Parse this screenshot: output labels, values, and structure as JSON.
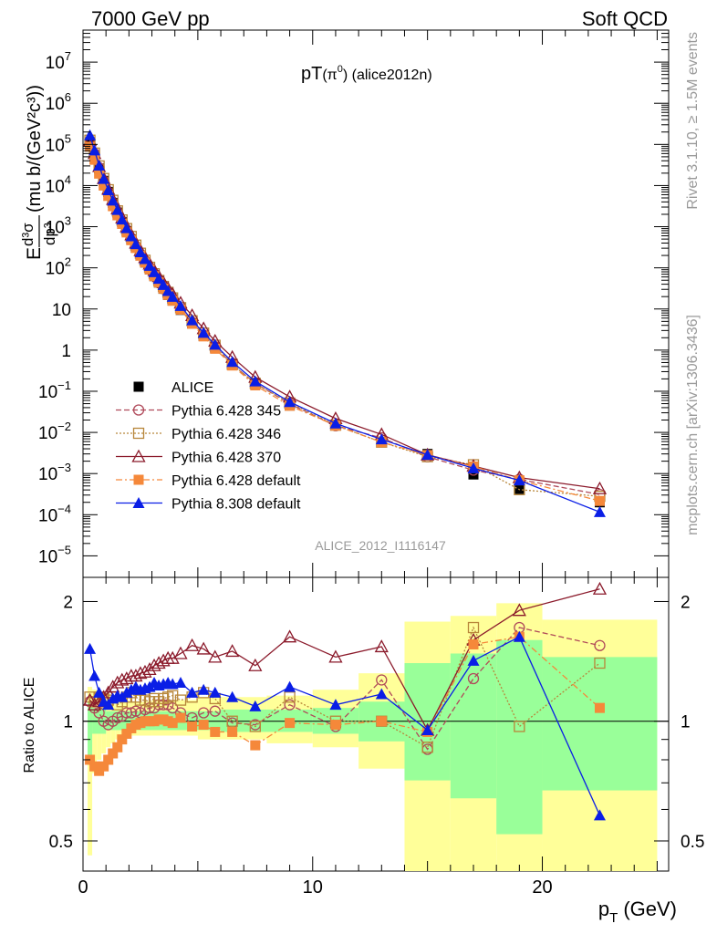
{
  "header": {
    "left": "7000 GeV pp",
    "right": "Soft QCD"
  },
  "plot_title": {
    "main": "pT",
    "paren": "(π",
    "sup": "0",
    "close": ")",
    "tag": " (alice2012n)"
  },
  "side_labels": {
    "rivet": "Rivet 3.1.10, ≥ 1.5M events",
    "mcplots": "mcplots.cern.ch [arXiv:1306.3436]"
  },
  "analysis_id": "ALICE_2012_I1116147",
  "axes": {
    "ylabel_top": {
      "prefix": "E",
      "frac_num": "d³σ",
      "frac_den": "dp³",
      "unit": "(mu b/(GeV²c³))"
    },
    "ylabel_bottom": "Ratio to ALICE",
    "xlabel": {
      "main": "p",
      "sub": "T",
      "unit": "(GeV)"
    }
  },
  "chart_data": [
    {
      "type": "scatter",
      "xlim": [
        0,
        25.5
      ],
      "ylim": [
        3e-06,
        60000000.0
      ],
      "yscale": "log",
      "xticks": [
        0,
        10,
        20
      ],
      "yticks": [
        {
          "v": 10000000.0,
          "base": "10",
          "exp": "7"
        },
        {
          "v": 1000000.0,
          "base": "10",
          "exp": "6"
        },
        {
          "v": 100000.0,
          "base": "10",
          "exp": "5"
        },
        {
          "v": 10000.0,
          "base": "10",
          "exp": "4"
        },
        {
          "v": 1000.0,
          "base": "10",
          "exp": "3"
        },
        {
          "v": 100.0,
          "base": "10",
          "exp": "2"
        },
        {
          "v": 10,
          "base": "10",
          "exp": ""
        },
        {
          "v": 1,
          "base": "1",
          "exp": ""
        },
        {
          "v": 0.1,
          "base": "10",
          "exp": "−1"
        },
        {
          "v": 0.01,
          "base": "10",
          "exp": "−2"
        },
        {
          "v": 0.001,
          "base": "10",
          "exp": "−3"
        },
        {
          "v": 0.0001,
          "base": "10",
          "exp": "−4"
        },
        {
          "v": 1e-05,
          "base": "10",
          "exp": "−5"
        }
      ],
      "legend_position": "bottom-left",
      "x": [
        0.3,
        0.5,
        0.7,
        0.9,
        1.1,
        1.3,
        1.5,
        1.7,
        1.9,
        2.1,
        2.3,
        2.5,
        2.7,
        2.9,
        3.1,
        3.3,
        3.5,
        3.7,
        3.9,
        4.25,
        4.75,
        5.25,
        5.75,
        6.5,
        7.5,
        9,
        11,
        13,
        15,
        17,
        19,
        22.5
      ],
      "data_values": [
        110000,
        55000,
        26000,
        13000,
        7000,
        3800,
        2200,
        1300,
        780,
        490,
        310,
        200,
        135,
        92,
        63,
        44,
        31,
        22,
        16,
        9.5,
        4.5,
        2.2,
        1.15,
        0.45,
        0.16,
        0.045,
        0.015,
        0.0058,
        0.003,
        0.00095,
        0.00042,
        0.0002
      ],
      "series": [
        {
          "name": "ALICE",
          "color": "#000000",
          "marker": "filled-square",
          "line": "none"
        },
        {
          "name": "Pythia 6.428 345",
          "color": "#b04a5a",
          "marker": "open-circle",
          "line": "dashed"
        },
        {
          "name": "Pythia 6.428 346",
          "color": "#b8863a",
          "marker": "open-square",
          "line": "dotted"
        },
        {
          "name": "Pythia 6.428 370",
          "color": "#8b1a2b",
          "marker": "open-triangle",
          "line": "solid"
        },
        {
          "name": "Pythia 6.428 default",
          "color": "#f5883a",
          "marker": "filled-square",
          "line": "dashdot"
        },
        {
          "name": "Pythia 8.308 default",
          "color": "#0a1ee6",
          "marker": "filled-triangle",
          "line": "solid"
        }
      ]
    },
    {
      "type": "line",
      "xlim": [
        0,
        25.5
      ],
      "ylim": [
        0.42,
        2.3
      ],
      "yscale": "log",
      "xticks": [
        0,
        10,
        20
      ],
      "yticks": [
        {
          "v": 0.5,
          "label": "0.5"
        },
        {
          "v": 1,
          "label": "1"
        },
        {
          "v": 2,
          "label": "2"
        }
      ],
      "x": [
        0.3,
        0.5,
        0.7,
        0.9,
        1.1,
        1.3,
        1.5,
        1.7,
        1.9,
        2.1,
        2.3,
        2.5,
        2.7,
        2.9,
        3.1,
        3.3,
        3.5,
        3.7,
        3.9,
        4.25,
        4.75,
        5.25,
        5.75,
        6.5,
        7.5,
        9,
        11,
        13,
        15,
        17,
        19,
        22.5
      ],
      "bands": [
        {
          "name": "yellow",
          "color": "#ffff99",
          "bins": [
            [
              0.2,
              0.4,
              0.46,
              1.22
            ],
            [
              0.4,
              0.6,
              0.74,
              1.2
            ],
            [
              0.6,
              0.8,
              0.8,
              1.18
            ],
            [
              0.8,
              1.0,
              0.83,
              1.17
            ],
            [
              1.0,
              1.2,
              0.86,
              1.16
            ],
            [
              1.2,
              1.4,
              0.88,
              1.15
            ],
            [
              1.4,
              1.6,
              0.9,
              1.14
            ],
            [
              1.6,
              2.0,
              0.91,
              1.13
            ],
            [
              2.0,
              3.0,
              0.92,
              1.12
            ],
            [
              3.0,
              5.0,
              0.92,
              1.13
            ],
            [
              5.0,
              8.0,
              0.9,
              1.15
            ],
            [
              8.0,
              10.0,
              0.88,
              1.16
            ],
            [
              10.0,
              12.0,
              0.86,
              1.2
            ],
            [
              12.0,
              14.0,
              0.76,
              1.32
            ],
            [
              14.0,
              16.0,
              0.4,
              1.78
            ],
            [
              16.0,
              18.0,
              0.4,
              1.84
            ],
            [
              18.0,
              20.0,
              0.4,
              1.98
            ],
            [
              20.0,
              25.0,
              0.4,
              1.8
            ]
          ]
        },
        {
          "name": "green",
          "color": "#99ff99",
          "bins": [
            [
              0.2,
              0.4,
              0.82,
              1.12
            ],
            [
              0.4,
              1.0,
              0.93,
              1.08
            ],
            [
              1.0,
              3.0,
              0.95,
              1.06
            ],
            [
              3.0,
              6.0,
              0.95,
              1.06
            ],
            [
              6.0,
              10.0,
              0.94,
              1.07
            ],
            [
              10.0,
              12.0,
              0.93,
              1.08
            ],
            [
              12.0,
              14.0,
              0.89,
              1.12
            ],
            [
              14.0,
              16.0,
              0.71,
              1.4
            ],
            [
              16.0,
              18.0,
              0.64,
              1.48
            ],
            [
              18.0,
              20.0,
              0.52,
              1.6
            ],
            [
              20.0,
              25.0,
              0.67,
              1.45
            ]
          ]
        }
      ],
      "series": [
        {
          "name": "Pythia 6.428 345",
          "values": [
            1.12,
            1.08,
            1.05,
            1.0,
            0.98,
            1.0,
            1.02,
            1.03,
            1.05,
            1.05,
            1.06,
            1.05,
            1.07,
            1.08,
            1.08,
            1.1,
            1.1,
            1.1,
            1.08,
            1.05,
            1.02,
            1.05,
            1.06,
            0.99,
            0.98,
            1.1,
            0.97,
            1.27,
            0.85,
            1.28,
            1.72,
            1.55
          ]
        },
        {
          "name": "Pythia 6.428 346",
          "values": [
            1.15,
            1.12,
            1.15,
            1.14,
            1.13,
            1.15,
            1.1,
            1.12,
            1.15,
            1.18,
            1.15,
            1.13,
            1.13,
            1.12,
            1.14,
            1.12,
            1.14,
            1.15,
            1.16,
            1.13,
            1.15,
            1.18,
            1.14,
            1.0,
            0.97,
            1.15,
            1.0,
            1.0,
            0.86,
            1.72,
            0.97,
            1.4
          ]
        },
        {
          "name": "Pythia 6.428 370",
          "values": [
            1.13,
            1.1,
            1.12,
            1.15,
            1.18,
            1.22,
            1.25,
            1.27,
            1.28,
            1.3,
            1.3,
            1.32,
            1.33,
            1.35,
            1.38,
            1.4,
            1.42,
            1.44,
            1.44,
            1.48,
            1.55,
            1.52,
            1.45,
            1.5,
            1.38,
            1.63,
            1.45,
            1.54,
            0.95,
            1.6,
            1.9,
            2.15
          ]
        },
        {
          "name": "Pythia 6.428 default",
          "values": [
            0.8,
            0.77,
            0.75,
            0.77,
            0.8,
            0.83,
            0.86,
            0.9,
            0.93,
            0.96,
            0.98,
            0.99,
            1.0,
            1.0,
            1.0,
            1.01,
            1.01,
            1.0,
            0.99,
            1.02,
            0.97,
            0.98,
            0.94,
            0.94,
            0.87,
            0.99,
            0.98,
            1.0,
            0.94,
            1.56,
            1.63,
            1.08
          ]
        },
        {
          "name": "Pythia 8.308 default",
          "values": [
            1.52,
            1.3,
            1.18,
            1.12,
            1.1,
            1.14,
            1.16,
            1.15,
            1.18,
            1.2,
            1.22,
            1.2,
            1.21,
            1.22,
            1.25,
            1.23,
            1.24,
            1.25,
            1.24,
            1.25,
            1.18,
            1.2,
            1.18,
            1.15,
            1.09,
            1.22,
            1.1,
            1.17,
            0.95,
            1.42,
            1.63,
            0.58
          ]
        }
      ]
    }
  ]
}
